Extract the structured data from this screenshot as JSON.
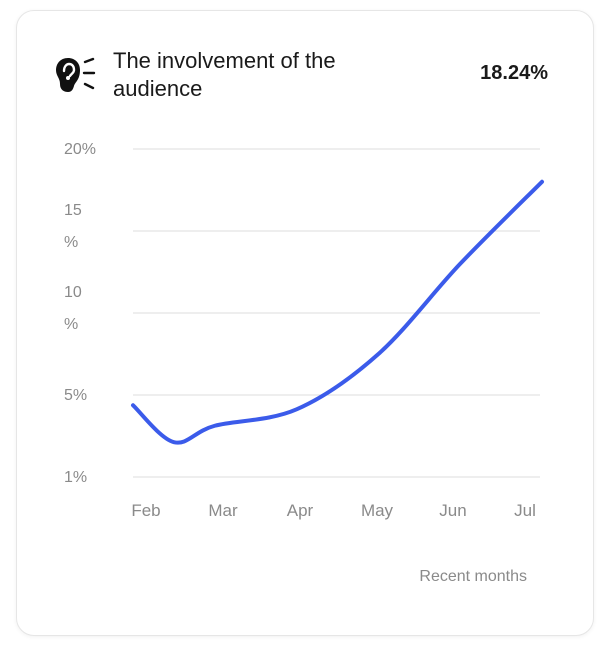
{
  "card": {
    "title": "The involvement of the audience",
    "icon": "ear-icon",
    "headline_value": "18.24%"
  },
  "chart_data": {
    "type": "line",
    "title": "The involvement of the audience",
    "xlabel": "Recent months",
    "ylabel": "",
    "categories": [
      "Feb",
      "Mar",
      "Apr",
      "May",
      "Jun",
      "Jul"
    ],
    "y_ticks": [
      {
        "value": 20,
        "label": "20%"
      },
      {
        "value": 15,
        "label": "15 %"
      },
      {
        "value": 10,
        "label": "10 %"
      },
      {
        "value": 5,
        "label": "5%"
      },
      {
        "value": 1,
        "label": "1%"
      }
    ],
    "series": [
      {
        "color": "#3b5bea",
        "points": [
          {
            "x": 0,
            "y": 4.5
          },
          {
            "x": 0.5,
            "y": 2.7
          },
          {
            "x": 1,
            "y": 3.5
          },
          {
            "x": 2,
            "y": 4.3
          },
          {
            "x": 3,
            "y": 7.5
          },
          {
            "x": 4,
            "y": 13
          },
          {
            "x": 5,
            "y": 18
          }
        ]
      }
    ],
    "ylim": [
      1,
      20
    ],
    "grid": true,
    "legend": "none"
  }
}
